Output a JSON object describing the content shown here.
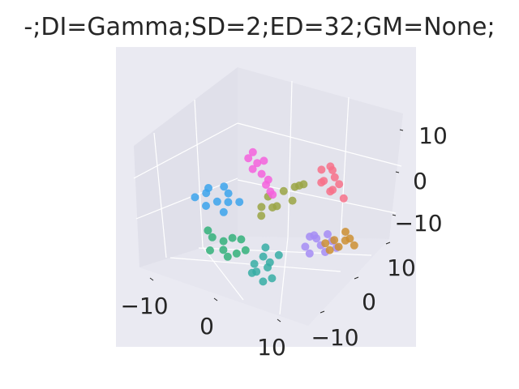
{
  "chart_data": {
    "type": "scatter",
    "title": "-;DI=Gamma;SD=2;ED=32;GM=None;",
    "xlabel": "",
    "ylabel": "",
    "zlabel": "",
    "x_ticks": [
      "−10",
      "0",
      "10"
    ],
    "y_ticks": [
      "10",
      "0",
      "−10"
    ],
    "z_ticks": [
      "10",
      "0",
      "−10"
    ],
    "x_range": [
      -15,
      15
    ],
    "y_range": [
      -15,
      15
    ],
    "z_range": [
      -15,
      15
    ],
    "grid": true,
    "projection": "3d",
    "series": [
      {
        "color": "#f77189",
        "points": [
          [
            8,
            -6,
            12
          ],
          [
            9,
            -5,
            10
          ],
          [
            7,
            -6,
            8
          ],
          [
            10,
            -4,
            9
          ],
          [
            8,
            -7,
            6
          ],
          [
            9,
            -3,
            7
          ],
          [
            7,
            -5,
            11
          ],
          [
            10,
            -6,
            5
          ],
          [
            9,
            -4,
            12
          ],
          [
            8,
            -2,
            9
          ]
        ]
      },
      {
        "color": "#9aa544",
        "points": [
          [
            4,
            -4,
            6
          ],
          [
            2,
            -3,
            4
          ],
          [
            0,
            -2,
            2
          ],
          [
            3,
            -5,
            5
          ],
          [
            1,
            -1,
            0
          ],
          [
            5,
            -3,
            7
          ],
          [
            -1,
            -2,
            -1
          ],
          [
            2,
            0,
            1
          ],
          [
            0,
            1,
            -2
          ],
          [
            4,
            -1,
            3
          ]
        ]
      },
      {
        "color": "#f561dd",
        "points": [
          [
            -4,
            -7,
            10
          ],
          [
            -3,
            -6,
            8
          ],
          [
            -2,
            -5,
            6
          ],
          [
            -1,
            -4,
            4
          ],
          [
            -3,
            -4,
            7
          ],
          [
            -2,
            -6,
            9
          ],
          [
            0,
            -3,
            3
          ],
          [
            -4,
            -5,
            9
          ],
          [
            -1,
            -5,
            5
          ],
          [
            0,
            -4,
            2
          ]
        ]
      },
      {
        "color": "#3ba3ec",
        "points": [
          [
            -10,
            -4,
            -2
          ],
          [
            -8,
            -3,
            -3
          ],
          [
            -6,
            -2,
            -2
          ],
          [
            -9,
            -1,
            -4
          ],
          [
            -7,
            -5,
            -1
          ],
          [
            -11,
            -2,
            -3
          ],
          [
            -5,
            -4,
            -2
          ],
          [
            -8,
            -6,
            0
          ],
          [
            -6,
            0,
            -4
          ],
          [
            -10,
            -5,
            -1
          ]
        ]
      },
      {
        "color": "#33b07a",
        "points": [
          [
            -6,
            5,
            -9
          ],
          [
            -4,
            6,
            -11
          ],
          [
            -2,
            4,
            -8
          ],
          [
            -5,
            3,
            -10
          ],
          [
            -3,
            7,
            -12
          ],
          [
            -7,
            4,
            -8
          ],
          [
            -1,
            5,
            -10
          ],
          [
            -4,
            2,
            -9
          ],
          [
            -6,
            6,
            -12
          ],
          [
            -2,
            6,
            -11
          ]
        ]
      },
      {
        "color": "#36ada4",
        "points": [
          [
            2,
            6,
            -10
          ],
          [
            3,
            7,
            -12
          ],
          [
            1,
            8,
            -14
          ],
          [
            4,
            5,
            -9
          ],
          [
            2,
            9,
            -13
          ],
          [
            3,
            6,
            -11
          ],
          [
            1,
            7,
            -12
          ],
          [
            4,
            8,
            -14
          ],
          [
            2,
            5,
            -8
          ],
          [
            3,
            9,
            -15
          ]
        ]
      },
      {
        "color": "#a48cf4",
        "points": [
          [
            10,
            6,
            -2
          ],
          [
            11,
            7,
            -3
          ],
          [
            9,
            8,
            -4
          ],
          [
            12,
            5,
            -2
          ],
          [
            10,
            9,
            -5
          ],
          [
            11,
            4,
            -1
          ],
          [
            13,
            6,
            -3
          ],
          [
            9,
            6,
            -2
          ],
          [
            12,
            8,
            -4
          ],
          [
            10,
            7,
            -1
          ]
        ]
      },
      {
        "color": "#cc8f32",
        "points": [
          [
            12,
            4,
            -2
          ],
          [
            13,
            5,
            -3
          ],
          [
            14,
            3,
            -1
          ],
          [
            12,
            6,
            -4
          ],
          [
            15,
            4,
            -2
          ],
          [
            13,
            2,
            0
          ],
          [
            11,
            5,
            -3
          ],
          [
            14,
            5,
            -1
          ]
        ]
      }
    ]
  }
}
